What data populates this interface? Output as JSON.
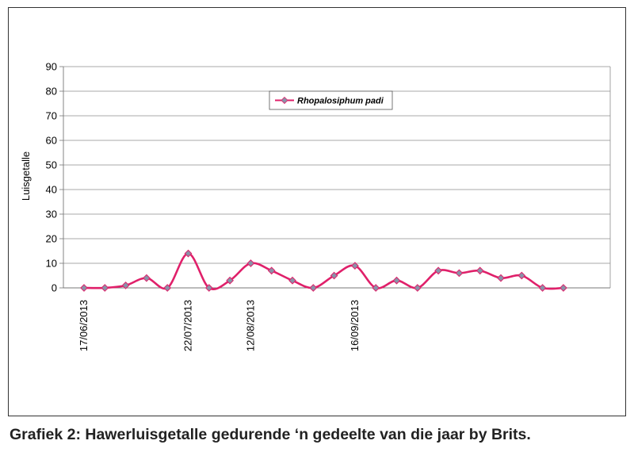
{
  "caption": "Grafiek 2: Hawerluisgetalle gedurende ‘n gedeelte van die jaar by Brits.",
  "chart_data": {
    "type": "line",
    "title": "",
    "ylabel": "Luisgetalle",
    "xlabel": "",
    "ylim": [
      0,
      90
    ],
    "yticks": [
      0,
      10,
      20,
      30,
      40,
      50,
      60,
      70,
      80,
      90
    ],
    "grid": true,
    "legend_position": "top-center",
    "x_tick_labels": [
      {
        "index": 0,
        "label": "17/06/2013"
      },
      {
        "index": 5,
        "label": "22/07/2013"
      },
      {
        "index": 8,
        "label": "12/08/2013"
      },
      {
        "index": 13,
        "label": "16/09/2013"
      }
    ],
    "series": [
      {
        "name": "Rhopalosiphum padi",
        "color": "#e0206a",
        "marker_color": "#8a92a8",
        "values": [
          0,
          0,
          1,
          4,
          0,
          14,
          0,
          3,
          10,
          7,
          3,
          0,
          5,
          9,
          0,
          3,
          0,
          7,
          6,
          7,
          4,
          5,
          0,
          0
        ]
      }
    ]
  }
}
